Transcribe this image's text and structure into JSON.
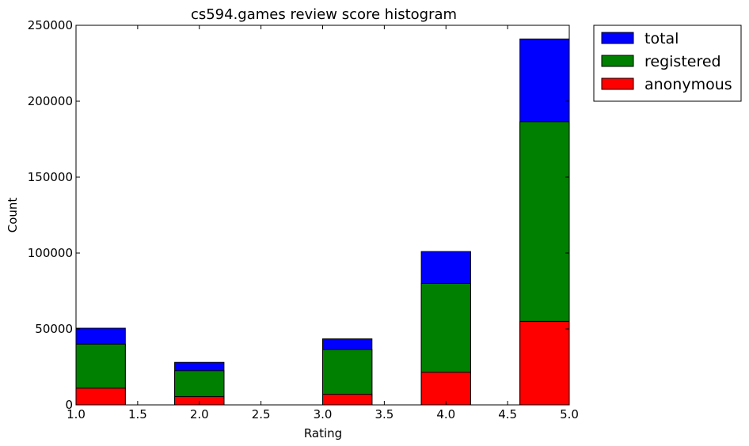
{
  "chart_data": {
    "type": "bar",
    "stacked": true,
    "title": "cs594.games review score histogram",
    "xlabel": "Rating",
    "ylabel": "Count",
    "xlim": [
      1.0,
      5.0
    ],
    "ylim": [
      0,
      250000
    ],
    "bin_width": 0.4,
    "x_ticks": [
      "1.0",
      "1.5",
      "2.0",
      "2.5",
      "3.0",
      "3.5",
      "4.0",
      "4.5",
      "5.0"
    ],
    "y_ticks": [
      "0",
      "50000",
      "100000",
      "150000",
      "200000",
      "250000"
    ],
    "grid": false,
    "legend_position": "outside-top-right",
    "bins": [
      {
        "x_start": 1.0,
        "x_end": 1.4
      },
      {
        "x_start": 1.8,
        "x_end": 2.2
      },
      {
        "x_start": 3.0,
        "x_end": 3.4
      },
      {
        "x_start": 3.8,
        "x_end": 4.2
      },
      {
        "x_start": 4.6,
        "x_end": 5.0
      }
    ],
    "series": [
      {
        "name": "total",
        "color": "#0000ff",
        "values": [
          50500,
          28000,
          43500,
          101000,
          241000
        ]
      },
      {
        "name": "registered",
        "color": "#008000",
        "values": [
          40000,
          22500,
          36500,
          80000,
          186500
        ]
      },
      {
        "name": "anonymous",
        "color": "#ff0000",
        "values": [
          11000,
          5500,
          7000,
          21500,
          55000
        ]
      }
    ]
  }
}
